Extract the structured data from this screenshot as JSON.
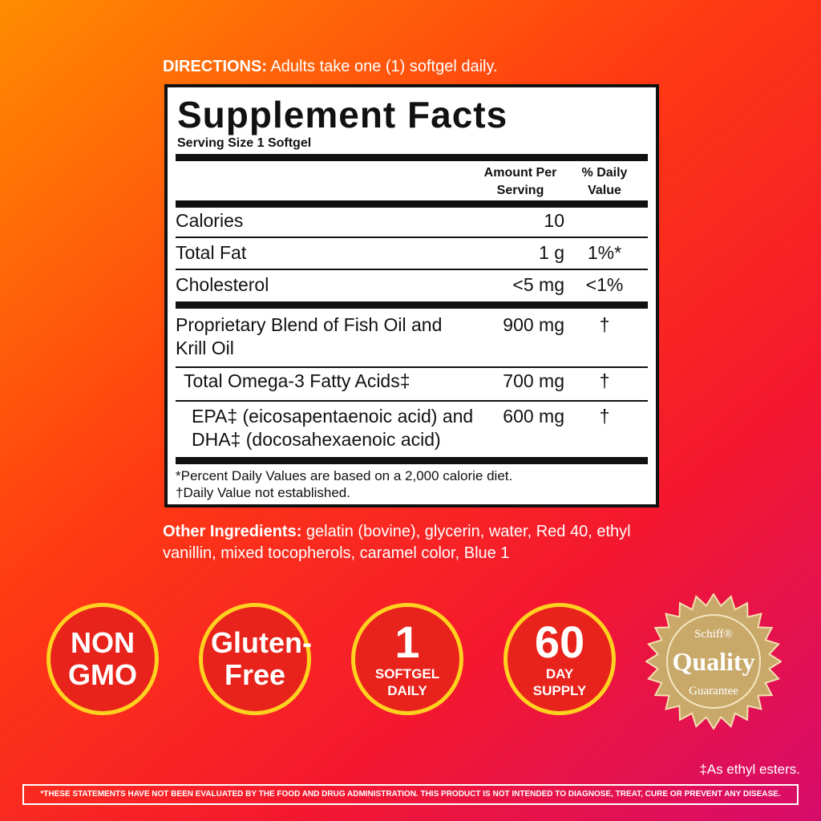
{
  "directions": {
    "label": "DIRECTIONS:",
    "text": "Adults take one (1) softgel daily."
  },
  "facts": {
    "title": "Supplement Facts",
    "serving_size": "Serving Size 1 Softgel",
    "columns": [
      "Amount Per Serving",
      "% Daily Value"
    ],
    "rows": [
      {
        "name": "Calories",
        "amount": "10",
        "dv": ""
      },
      {
        "name": "Total Fat",
        "amount": "1 g",
        "dv": "1%*"
      },
      {
        "name": "Cholesterol",
        "amount": "<5 mg",
        "dv": "<1%"
      },
      {
        "name": "Proprietary Blend of Fish Oil and Krill Oil",
        "amount": "900 mg",
        "dv": "†"
      },
      {
        "name": "Total Omega-3 Fatty Acids‡",
        "amount": "700 mg",
        "dv": "†"
      },
      {
        "name": "EPA‡ (eicosapentaenoic acid) and DHA‡ (docosahexaenoic acid)",
        "amount": "600 mg",
        "dv": "†"
      }
    ],
    "footnotes": [
      "*Percent Daily Values are based on a 2,000 calorie diet.",
      "†Daily Value not established."
    ]
  },
  "other_ingredients": {
    "label": "Other Ingredients:",
    "text": "gelatin (bovine), glycerin, water, Red 40, ethyl vanillin, mixed tocopherols, caramel color,  Blue 1"
  },
  "badges": [
    {
      "big": "NON GMO",
      "small": ""
    },
    {
      "big": "Gluten-Free",
      "small": ""
    },
    {
      "big": "1",
      "small": "SOFTGEL DAILY"
    },
    {
      "big": "60",
      "small": "DAY SUPPLY"
    }
  ],
  "seal": {
    "brand": "Schiff®",
    "word": "Quality",
    "sub": "Guarantee"
  },
  "esters_note": "‡As ethyl esters.",
  "disclaimer": "*THESE STATEMENTS HAVE NOT BEEN EVALUATED BY THE FOOD AND DRUG ADMINISTRATION. THIS PRODUCT IS NOT INTENDED TO DIAGNOSE, TREAT, CURE OR PREVENT ANY DISEASE."
}
